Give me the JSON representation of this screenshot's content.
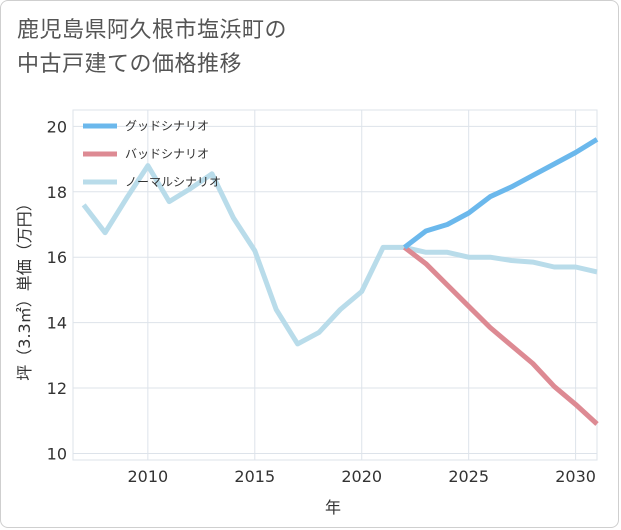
{
  "chart_data": {
    "type": "line",
    "title_line1": "鹿児島県阿久根市塩浜町の",
    "title_line2": "中古戸建ての価格推移",
    "xlabel": "年",
    "ylabel": "坪（3.3㎡）単価（万円）",
    "xlim": [
      2006.5,
      2031
    ],
    "ylim": [
      9.8,
      20.5
    ],
    "x_ticks": [
      2010,
      2015,
      2020,
      2025,
      2030
    ],
    "y_ticks": [
      10,
      12,
      14,
      16,
      18,
      20
    ],
    "grid": true,
    "legend_position": "top-left",
    "series": [
      {
        "name": "グッドシナリオ",
        "color": "#6bb8ec",
        "x": [
          2022,
          2023,
          2024,
          2025,
          2026,
          2027,
          2028,
          2029,
          2030,
          2031
        ],
        "y": [
          16.3,
          16.8,
          17.0,
          17.35,
          17.85,
          18.15,
          18.5,
          18.85,
          19.2,
          19.6
        ]
      },
      {
        "name": "バッドシナリオ",
        "color": "#dd8a93",
        "x": [
          2022,
          2023,
          2024,
          2025,
          2026,
          2027,
          2028,
          2029,
          2030,
          2031
        ],
        "y": [
          16.3,
          15.8,
          15.15,
          14.5,
          13.85,
          13.3,
          12.75,
          12.05,
          11.5,
          10.9
        ]
      },
      {
        "name": "ノーマルシナリオ",
        "color": "#b9dcea",
        "x": [
          2007,
          2008,
          2009,
          2010,
          2011,
          2012,
          2013,
          2014,
          2015,
          2016,
          2017,
          2018,
          2019,
          2020,
          2021,
          2022,
          2023,
          2024,
          2025,
          2026,
          2027,
          2028,
          2029,
          2030,
          2031
        ],
        "y": [
          17.6,
          16.75,
          17.8,
          18.8,
          17.7,
          18.1,
          18.55,
          17.2,
          16.2,
          14.4,
          13.35,
          13.7,
          14.4,
          14.95,
          16.3,
          16.3,
          16.15,
          16.15,
          16.0,
          16.0,
          15.9,
          15.85,
          15.7,
          15.7,
          15.55
        ]
      }
    ]
  }
}
